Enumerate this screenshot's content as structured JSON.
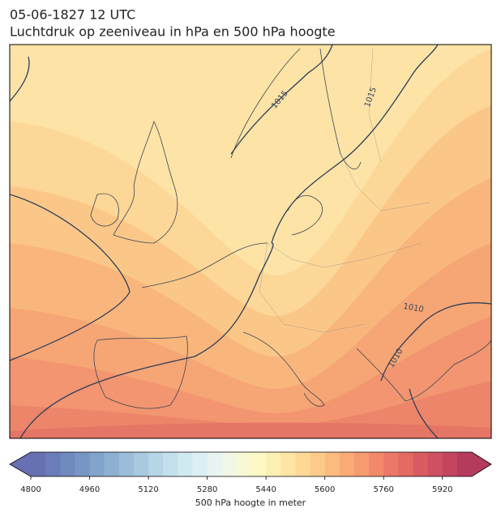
{
  "header": {
    "title": "05-06-1827 12 UTC",
    "subtitle": "Luchtdruk op zeeniveau in hPa en 500 hPa hoogte"
  },
  "map": {
    "isobar_labels": [
      "1015",
      "1015",
      "1010",
      "1010"
    ]
  },
  "colorbar": {
    "lim": [
      4800,
      6000
    ],
    "ticks": [
      4800,
      4960,
      5120,
      5280,
      5440,
      5600,
      5760,
      5920
    ],
    "label": "500 hPa hoogte in meter",
    "colors": [
      "#6670b3",
      "#6a7cb9",
      "#7089bf",
      "#7896c5",
      "#82a3cb",
      "#8db0d2",
      "#9bbdd9",
      "#a8c9e0",
      "#b6d5e7",
      "#c3e0ec",
      "#d1e9f0",
      "#dcf0f3",
      "#e7f4f1",
      "#f0f7e4",
      "#f8f9d3",
      "#fdf8c4",
      "#fdf0b4",
      "#fde5a4",
      "#fdd896",
      "#fcca8a",
      "#fbbb7f",
      "#f9aa76",
      "#f69a70",
      "#f2896b",
      "#ec7867",
      "#e46a64",
      "#da5c62",
      "#cf5061",
      "#c3455f",
      "#b53b5c"
    ]
  }
}
